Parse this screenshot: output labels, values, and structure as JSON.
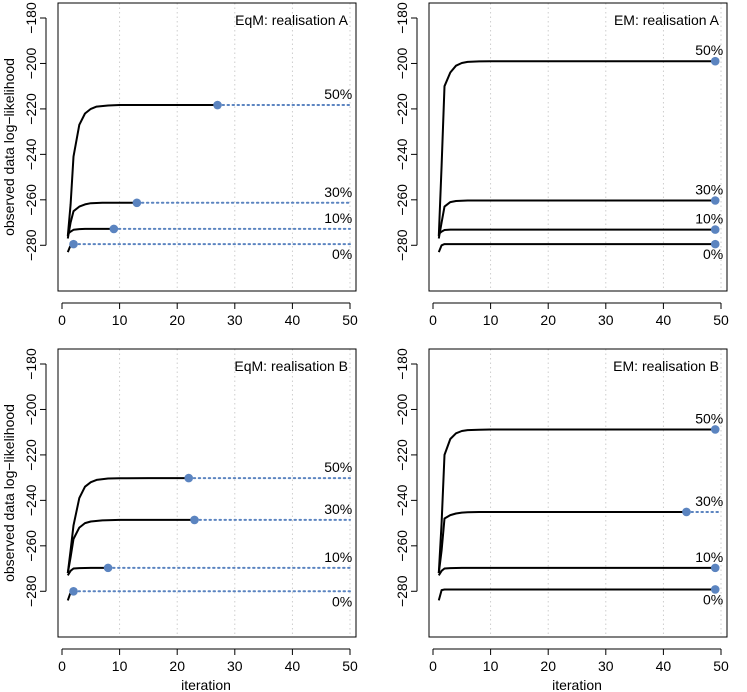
{
  "chart_data": [
    {
      "type": "line",
      "title": "EqM: realisation A",
      "xlabel": "",
      "ylabel": "observed data log−likelihood",
      "xlim": [
        0,
        50
      ],
      "ylim": [
        -290,
        -180
      ],
      "xticks": [
        "0",
        "10",
        "20",
        "30",
        "40",
        "50"
      ],
      "yticks": [
        "−180",
        "−200",
        "−220",
        "−240",
        "−260",
        "−280"
      ],
      "grid": "vertical dotted at each x tick",
      "series": [
        {
          "name": "50%",
          "x": [
            1,
            1.5,
            2,
            3,
            4,
            5,
            6,
            8,
            10,
            15,
            20,
            27
          ],
          "y": [
            -276,
            -262,
            -241,
            -227,
            -222,
            -220,
            -219,
            -218.5,
            -218.3,
            -218.3,
            -218.3,
            -218.3
          ],
          "stop": [
            27,
            -218.3
          ],
          "dotted_to": 50
        },
        {
          "name": "30%",
          "x": [
            1,
            1.5,
            2,
            3,
            4,
            5,
            7,
            10,
            13
          ],
          "y": [
            -277,
            -270,
            -265,
            -263,
            -262,
            -261.5,
            -261.3,
            -261.3,
            -261.3
          ],
          "stop": [
            13,
            -261.3
          ],
          "dotted_to": 50
        },
        {
          "name": "10%",
          "x": [
            1,
            1.5,
            2,
            3,
            4,
            6,
            9
          ],
          "y": [
            -275,
            -274,
            -273.2,
            -272.9,
            -272.8,
            -272.8,
            -272.8
          ],
          "stop": [
            9,
            -272.8
          ],
          "dotted_to": 50
        },
        {
          "name": "0%",
          "x": [
            1,
            1.5,
            2
          ],
          "y": [
            -283,
            -280,
            -279.5
          ],
          "stop": [
            2,
            -279.5
          ],
          "dotted_to": 50
        }
      ]
    },
    {
      "type": "line",
      "title": "EM: realisation A",
      "xlabel": "",
      "ylabel": "",
      "xlim": [
        0,
        50
      ],
      "ylim": [
        -290,
        -180
      ],
      "xticks": [
        "0",
        "10",
        "20",
        "30",
        "40",
        "50"
      ],
      "yticks": [
        "−180",
        "−200",
        "−220",
        "−240",
        "−260",
        "−280"
      ],
      "grid": "vertical dotted at each x tick",
      "series": [
        {
          "name": "50%",
          "x": [
            1,
            1.5,
            2,
            3,
            4,
            5,
            6,
            8,
            10,
            20,
            49
          ],
          "y": [
            -276,
            -245,
            -210,
            -204,
            -201,
            -199.8,
            -199.3,
            -199.1,
            -199,
            -199,
            -199
          ],
          "stop": [
            49,
            -199
          ],
          "dotted_to": 49
        },
        {
          "name": "30%",
          "x": [
            1,
            1.5,
            2,
            3,
            4,
            6,
            10,
            49
          ],
          "y": [
            -277,
            -270,
            -263,
            -261,
            -260.5,
            -260.3,
            -260.3,
            -260.3
          ],
          "stop": [
            49,
            -260.3
          ],
          "dotted_to": 49
        },
        {
          "name": "10%",
          "x": [
            1,
            1.5,
            2,
            3,
            5,
            10,
            49
          ],
          "y": [
            -275,
            -274,
            -273.3,
            -273.1,
            -273.1,
            -273.1,
            -273.1
          ],
          "stop": [
            49,
            -273.1
          ],
          "dotted_to": 49
        },
        {
          "name": "0%",
          "x": [
            1,
            1.5,
            2,
            4,
            49
          ],
          "y": [
            -283,
            -280,
            -279.5,
            -279.5,
            -279.5
          ],
          "stop": [
            49,
            -279.5
          ],
          "dotted_to": 49
        }
      ]
    },
    {
      "type": "line",
      "title": "EqM: realisation B",
      "xlabel": "iteration",
      "ylabel": "observed data log−likelihood",
      "xlim": [
        0,
        50
      ],
      "ylim": [
        -290,
        -180
      ],
      "xticks": [
        "0",
        "10",
        "20",
        "30",
        "40",
        "50"
      ],
      "yticks": [
        "−180",
        "−200",
        "−220",
        "−240",
        "−260",
        "−280"
      ],
      "grid": "vertical dotted at each x tick",
      "series": [
        {
          "name": "50%",
          "x": [
            1,
            1.5,
            2,
            3,
            4,
            5,
            6,
            8,
            10,
            15,
            22
          ],
          "y": [
            -272,
            -262,
            -251,
            -239,
            -234,
            -232,
            -231,
            -230.4,
            -230.3,
            -230.2,
            -230.2
          ],
          "stop": [
            22,
            -230.2
          ],
          "dotted_to": 50
        },
        {
          "name": "30%",
          "x": [
            1,
            1.5,
            2,
            3,
            4,
            5,
            7,
            10,
            15,
            23
          ],
          "y": [
            -272,
            -265,
            -257,
            -252,
            -250,
            -249.3,
            -248.8,
            -248.6,
            -248.6,
            -248.6
          ],
          "stop": [
            23,
            -248.6
          ],
          "dotted_to": 50
        },
        {
          "name": "10%",
          "x": [
            1,
            1.5,
            2,
            3,
            5,
            8
          ],
          "y": [
            -273,
            -271,
            -270,
            -269.8,
            -269.7,
            -269.7
          ],
          "stop": [
            8,
            -269.7
          ],
          "dotted_to": 50
        },
        {
          "name": "0%",
          "x": [
            1,
            1.5,
            2
          ],
          "y": [
            -284,
            -280.5,
            -280
          ],
          "stop": [
            2,
            -280
          ],
          "dotted_to": 50
        }
      ]
    },
    {
      "type": "line",
      "title": "EM: realisation B",
      "xlabel": "iteration",
      "ylabel": "",
      "xlim": [
        0,
        50
      ],
      "ylim": [
        -290,
        -180
      ],
      "xticks": [
        "0",
        "10",
        "20",
        "30",
        "40",
        "50"
      ],
      "yticks": [
        "−180",
        "−200",
        "−220",
        "−240",
        "−260",
        "−280"
      ],
      "grid": "vertical dotted at each x tick",
      "series": [
        {
          "name": "50%",
          "x": [
            1,
            1.5,
            2,
            3,
            4,
            5,
            6,
            8,
            10,
            20,
            49
          ],
          "y": [
            -272,
            -250,
            -220,
            -213,
            -210.5,
            -209.5,
            -209.1,
            -208.9,
            -208.8,
            -208.8,
            -208.8
          ],
          "stop": [
            49,
            -208.8
          ],
          "dotted_to": 49
        },
        {
          "name": "30%",
          "x": [
            1,
            1.5,
            2,
            3,
            4,
            5,
            6,
            8,
            10,
            20,
            44
          ],
          "y": [
            -272,
            -262,
            -248,
            -246.5,
            -245.8,
            -245.4,
            -245.2,
            -245.1,
            -245.1,
            -245.1,
            -245.1
          ],
          "stop": [
            44,
            -245.1
          ],
          "dotted_to": 50
        },
        {
          "name": "10%",
          "x": [
            1,
            1.5,
            2,
            3,
            5,
            10,
            49
          ],
          "y": [
            -273,
            -271,
            -270,
            -269.8,
            -269.7,
            -269.7,
            -269.7
          ],
          "stop": [
            49,
            -269.7
          ],
          "dotted_to": 49
        },
        {
          "name": "0%",
          "x": [
            1,
            1.5,
            2,
            4,
            49
          ],
          "y": [
            -284,
            -279.5,
            -279.2,
            -279.2,
            -279.2
          ],
          "stop": [
            49,
            -279.2
          ],
          "dotted_to": 49
        }
      ]
    }
  ]
}
